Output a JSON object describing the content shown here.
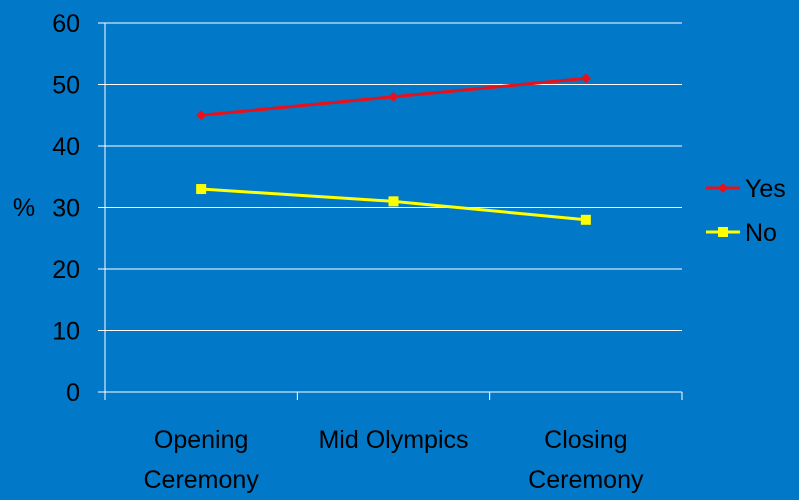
{
  "chart_data": {
    "type": "line",
    "title": "",
    "xlabel": "",
    "ylabel": "%",
    "ylim": [
      0,
      60
    ],
    "yticks": [
      "0",
      "10",
      "20",
      "30",
      "40",
      "50",
      "60"
    ],
    "categories": [
      [
        "Opening",
        "Ceremony"
      ],
      [
        "Mid Olympics"
      ],
      [
        "Closing",
        "Ceremony"
      ]
    ],
    "grid": true,
    "legend_position": "right",
    "series": [
      {
        "name": "Yes",
        "color": "#e8101a",
        "marker": "diamond",
        "values": [
          45,
          48,
          51
        ]
      },
      {
        "name": "No",
        "color": "#ffff00",
        "marker": "square",
        "values": [
          33,
          31,
          28
        ]
      }
    ]
  },
  "colors": {
    "background": "#0278c8",
    "gridline": "#ffffff",
    "axis": "#ffffff"
  }
}
